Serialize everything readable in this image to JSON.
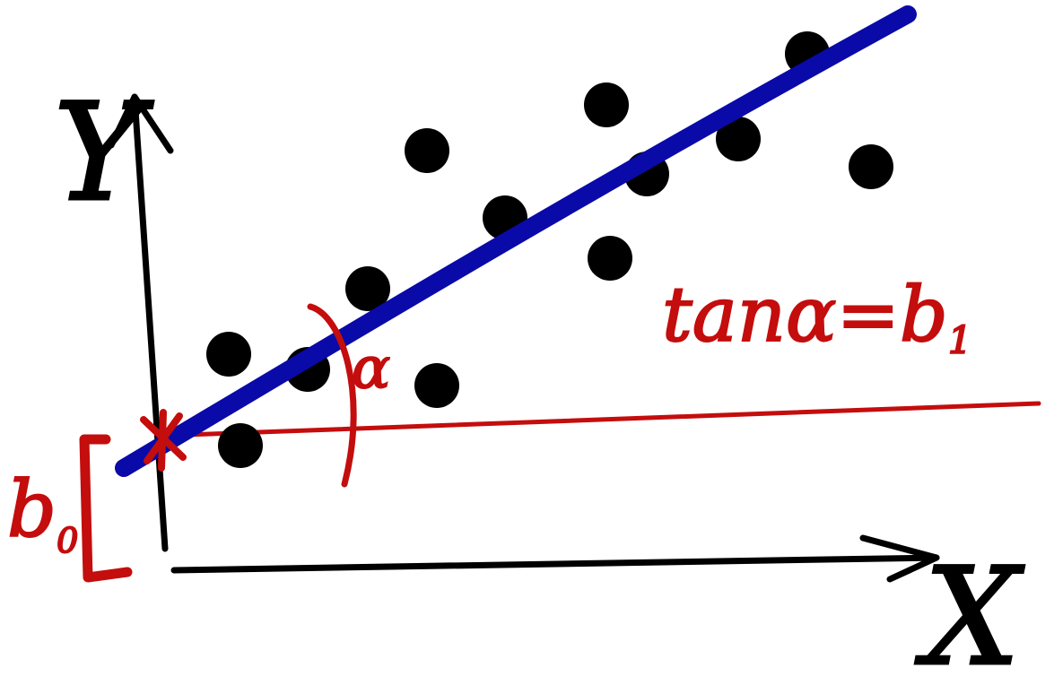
{
  "axes": {
    "x_label": "X",
    "y_label": "Y"
  },
  "annotations": {
    "intercept_label": "b",
    "intercept_subscript": "0",
    "angle_label": "α",
    "slope_equation_main": "tanα=b",
    "slope_equation_subscript": "1"
  },
  "colors": {
    "axis": "#000000",
    "points": "#000000",
    "regression_line": "#0a0aa8",
    "annotation": "#c40d0d",
    "background": "#ffffff"
  }
}
